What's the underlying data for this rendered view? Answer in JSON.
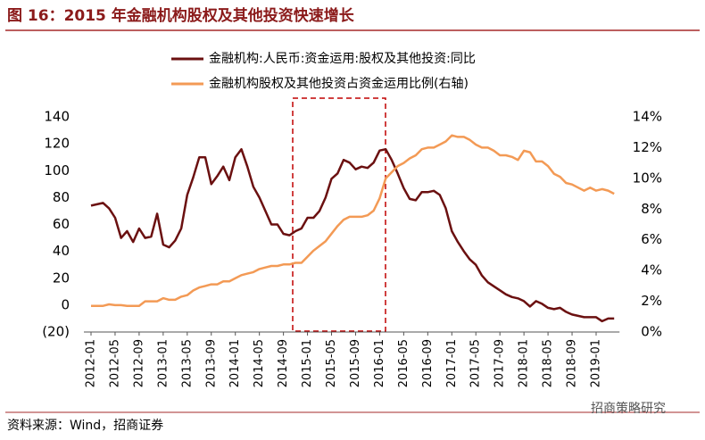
{
  "chart_data": {
    "type": "line",
    "title": "图 16：2015 年金融机构股权及其他投资快速增长",
    "source": "资料来源：Wind，招商证券",
    "watermark": "招商策略研究",
    "categories": [
      "2012-01",
      null,
      null,
      null,
      "2012-05",
      null,
      null,
      null,
      "2012-09",
      null,
      null,
      null,
      "2013-01",
      null,
      null,
      null,
      "2013-05",
      null,
      null,
      null,
      "2013-09",
      null,
      null,
      null,
      "2014-01",
      null,
      null,
      null,
      "2014-05",
      null,
      null,
      null,
      "2014-09",
      null,
      null,
      null,
      "2015-01",
      null,
      null,
      null,
      "2015-05",
      null,
      null,
      null,
      "2015-09",
      null,
      null,
      null,
      "2016-01",
      null,
      null,
      null,
      "2016-05",
      null,
      null,
      null,
      "2016-09",
      null,
      null,
      null,
      "2017-01",
      null,
      null,
      null,
      "2017-05",
      null,
      null,
      null,
      "2017-09",
      null,
      null,
      null,
      "2018-01",
      null,
      null,
      null,
      "2018-05",
      null,
      null,
      null,
      "2018-09",
      null,
      null,
      null,
      "2019-01",
      null,
      null,
      null
    ],
    "series": [
      {
        "name": "金融机构:人民币:资金运用:股权及其他投资:同比",
        "color": "#6b1010",
        "axis": "y",
        "values": [
          74,
          75,
          76,
          72,
          65,
          50,
          55,
          47,
          57,
          50,
          51,
          68,
          45,
          43,
          48,
          57,
          82,
          95,
          110,
          110,
          90,
          96,
          103,
          93,
          110,
          116,
          103,
          88,
          80,
          70,
          60,
          60,
          53,
          52,
          55,
          57,
          65,
          65,
          70,
          80,
          94,
          98,
          108,
          106,
          101,
          103,
          102,
          106,
          115,
          116,
          108,
          98,
          87,
          79,
          78,
          84,
          84,
          85,
          82,
          72,
          55,
          47,
          40,
          34,
          30,
          22,
          17,
          14,
          11,
          8,
          6,
          5,
          3,
          -1,
          3,
          1,
          -2,
          -3,
          -2,
          -5,
          -7,
          -8,
          -9,
          -9,
          -9,
          -12,
          -10,
          -10
        ]
      },
      {
        "name": "金融机构股权及其他投资占资金运用比例(右轴)",
        "color": "#f39a55",
        "axis": "y2",
        "values": [
          1.7,
          1.7,
          1.7,
          1.8,
          1.75,
          1.75,
          1.7,
          1.7,
          1.7,
          2.0,
          2.0,
          2.0,
          2.2,
          2.1,
          2.1,
          2.3,
          2.4,
          2.7,
          2.9,
          3.0,
          3.1,
          3.1,
          3.3,
          3.3,
          3.5,
          3.7,
          3.8,
          3.9,
          4.1,
          4.2,
          4.3,
          4.3,
          4.4,
          4.4,
          4.5,
          4.5,
          4.9,
          5.3,
          5.6,
          5.9,
          6.4,
          6.9,
          7.3,
          7.5,
          7.5,
          7.5,
          7.6,
          7.9,
          8.7,
          10.0,
          10.4,
          10.8,
          11.0,
          11.3,
          11.5,
          11.9,
          12.0,
          12.0,
          12.2,
          12.4,
          12.8,
          12.7,
          12.7,
          12.5,
          12.2,
          12.0,
          12.0,
          11.8,
          11.5,
          11.5,
          11.4,
          11.2,
          11.8,
          11.7,
          11.1,
          11.1,
          10.8,
          10.3,
          10.1,
          9.7,
          9.6,
          9.4,
          9.2,
          9.4,
          9.2,
          9.3,
          9.2,
          9.0
        ]
      }
    ],
    "ylim": [
      -20,
      140
    ],
    "yticks": [
      {
        "value": -20,
        "label": "(20)"
      },
      0,
      20,
      40,
      60,
      80,
      100,
      120,
      140
    ],
    "negative_tick_color": "#c00000",
    "y2lim": [
      0,
      14
    ],
    "y2ticks": [
      {
        "value": 0,
        "label": "0%"
      },
      {
        "value": 2,
        "label": "2%"
      },
      {
        "value": 4,
        "label": "4%"
      },
      {
        "value": 6,
        "label": "6%"
      },
      {
        "value": 8,
        "label": "8%"
      },
      {
        "value": 10,
        "label": "10%"
      },
      {
        "value": 12,
        "label": "12%"
      },
      {
        "value": 14,
        "label": "14%"
      }
    ]
  }
}
